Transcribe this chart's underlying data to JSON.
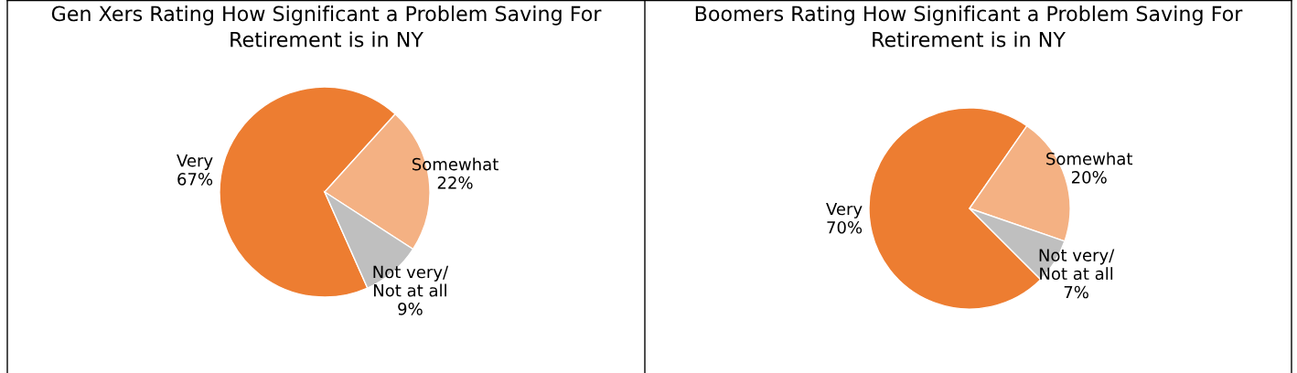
{
  "chart_data": [
    {
      "type": "pie",
      "title": "Gen Xers Rating How Significant a Problem Saving For Retirement is in NY",
      "categories": [
        "Very",
        "Somewhat",
        "Not very/\nNot at all"
      ],
      "values": [
        67,
        22,
        9
      ],
      "value_labels": [
        "67%",
        "22%",
        "9%"
      ],
      "colors": [
        "#ed7d31",
        "#f4b183",
        "#bfbfbf"
      ],
      "legend": false
    },
    {
      "type": "pie",
      "title": "Boomers Rating How Significant a Problem Saving For Retirement is in NY",
      "categories": [
        "Very",
        "Somewhat",
        "Not very/\nNot at all"
      ],
      "values": [
        70,
        20,
        7
      ],
      "value_labels": [
        "70%",
        "20%",
        "7%"
      ],
      "colors": [
        "#ed7d31",
        "#f4b183",
        "#bfbfbf"
      ],
      "legend": false
    }
  ]
}
